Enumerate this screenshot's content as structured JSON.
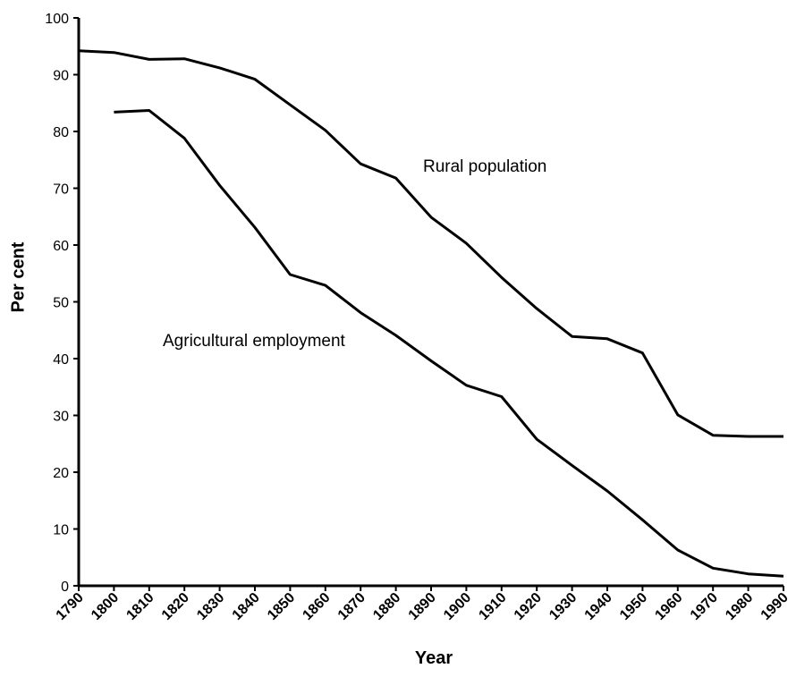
{
  "chart_data": {
    "type": "line",
    "title": "",
    "xlabel": "Year",
    "ylabel": "Per cent",
    "xlim": [
      1790,
      1990
    ],
    "ylim": [
      0,
      100
    ],
    "x_ticks": [
      1790,
      1800,
      1810,
      1820,
      1830,
      1840,
      1850,
      1860,
      1870,
      1880,
      1890,
      1900,
      1910,
      1920,
      1930,
      1940,
      1950,
      1960,
      1970,
      1980,
      1990
    ],
    "y_ticks": [
      0,
      10,
      20,
      30,
      40,
      50,
      60,
      70,
      80,
      90,
      100
    ],
    "grid": false,
    "legend": "none",
    "line_color": "#000000",
    "series": [
      {
        "name": "Rural population",
        "x": [
          1790,
          1800,
          1810,
          1820,
          1830,
          1840,
          1850,
          1860,
          1870,
          1880,
          1890,
          1900,
          1910,
          1920,
          1930,
          1940,
          1950,
          1960,
          1970,
          1980,
          1990
        ],
        "values": [
          94.2,
          93.9,
          92.7,
          92.8,
          91.2,
          89.2,
          84.7,
          80.2,
          74.3,
          71.8,
          64.9,
          60.3,
          54.3,
          48.8,
          43.9,
          43.5,
          41.0,
          30.1,
          26.5,
          26.3,
          26.3
        ]
      },
      {
        "name": "Agricultural employment",
        "x": [
          1800,
          1810,
          1820,
          1830,
          1840,
          1850,
          1860,
          1870,
          1880,
          1890,
          1900,
          1910,
          1920,
          1930,
          1940,
          1950,
          1960,
          1970,
          1980,
          1990
        ],
        "values": [
          83.4,
          83.7,
          78.8,
          70.5,
          63.1,
          54.8,
          52.9,
          48.1,
          44.1,
          39.6,
          35.3,
          33.3,
          25.8,
          21.2,
          16.7,
          11.6,
          6.3,
          3.1,
          2.1,
          1.7
        ]
      }
    ],
    "annotations": [
      {
        "series": "Rural population",
        "text": "Rural population"
      },
      {
        "series": "Agricultural employment",
        "text": "Agricultural employment"
      }
    ]
  }
}
